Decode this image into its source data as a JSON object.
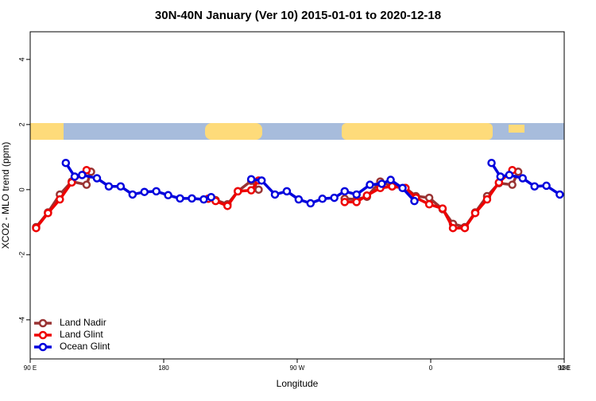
{
  "chart_data": {
    "type": "line",
    "title": "30N-40N January (Ver 10)   2015-01-01 to 2020-12-18",
    "x_label": "Longitude",
    "y_label": "XCO2 - MLO trend (ppm)",
    "xlim": [
      90,
      450
    ],
    "xticks": [
      {
        "value": 90,
        "label": "90 E"
      },
      180,
      {
        "value": 270,
        "label": "90 W"
      },
      {
        "value": 360,
        "label": "0"
      },
      {
        "value": 450,
        "label": "90 E"
      },
      {
        "value": 540,
        "label": "180"
      }
    ],
    "ylim": [
      -5.2,
      4.85
    ],
    "yticks": [
      -4,
      -2,
      0,
      2,
      4
    ],
    "legend": "bottom-left",
    "series": [
      {
        "name": "Land Nadir",
        "color": "#993333",
        "x": [
          94,
          102,
          110,
          118,
          128,
          131,
          null,
          210,
          215,
          223,
          230,
          239,
          244,
          null,
          302,
          310,
          317,
          326,
          334,
          343,
          350,
          359,
          368,
          375,
          383,
          390,
          398,
          406,
          415,
          419
        ],
        "values": [
          -1.15,
          -0.7,
          -0.15,
          0.25,
          0.15,
          0.55,
          null,
          -0.28,
          -0.32,
          -0.45,
          -0.05,
          0.27,
          0.0,
          null,
          -0.28,
          -0.3,
          -0.22,
          0.25,
          0.1,
          0.05,
          -0.2,
          -0.25,
          -0.6,
          -1.05,
          -1.15,
          -0.7,
          -0.2,
          0.2,
          0.15,
          0.55
        ]
      },
      {
        "name": "Land Glint",
        "color": "#ee0000",
        "x": [
          94,
          102,
          110,
          118,
          128,
          null,
          210,
          215,
          223,
          230,
          239,
          244,
          null,
          302,
          310,
          317,
          326,
          334,
          343,
          350,
          359,
          368,
          375,
          383,
          390,
          398,
          406,
          415
        ],
        "values": [
          -1.18,
          -0.72,
          -0.3,
          0.22,
          0.6,
          null,
          -0.28,
          -0.35,
          -0.5,
          -0.05,
          -0.02,
          0.28,
          null,
          -0.38,
          -0.38,
          -0.18,
          0.05,
          0.1,
          0.05,
          -0.25,
          -0.45,
          -0.58,
          -1.18,
          -1.18,
          -0.72,
          -0.3,
          0.22,
          0.6
        ]
      },
      {
        "name": "Ocean Glint",
        "color": "#0000dd",
        "x": [
          114,
          120,
          125,
          135,
          143,
          151,
          159,
          167,
          175,
          183,
          191,
          199,
          207,
          212,
          null,
          239,
          246,
          255,
          263,
          271,
          279,
          287,
          295,
          302,
          310,
          319,
          327,
          333,
          341,
          349,
          null,
          401,
          407,
          413,
          422,
          430,
          438,
          447
        ],
        "values": [
          0.82,
          0.4,
          0.45,
          0.35,
          0.1,
          0.1,
          -0.15,
          -0.07,
          -0.05,
          -0.17,
          -0.27,
          -0.27,
          -0.3,
          -0.23,
          null,
          0.32,
          0.28,
          -0.15,
          -0.05,
          -0.3,
          -0.42,
          -0.28,
          -0.25,
          -0.05,
          -0.15,
          0.15,
          0.18,
          0.3,
          0.05,
          -0.35,
          null,
          0.82,
          0.4,
          0.45,
          0.35,
          0.1,
          0.12,
          -0.15
        ]
      }
    ]
  }
}
